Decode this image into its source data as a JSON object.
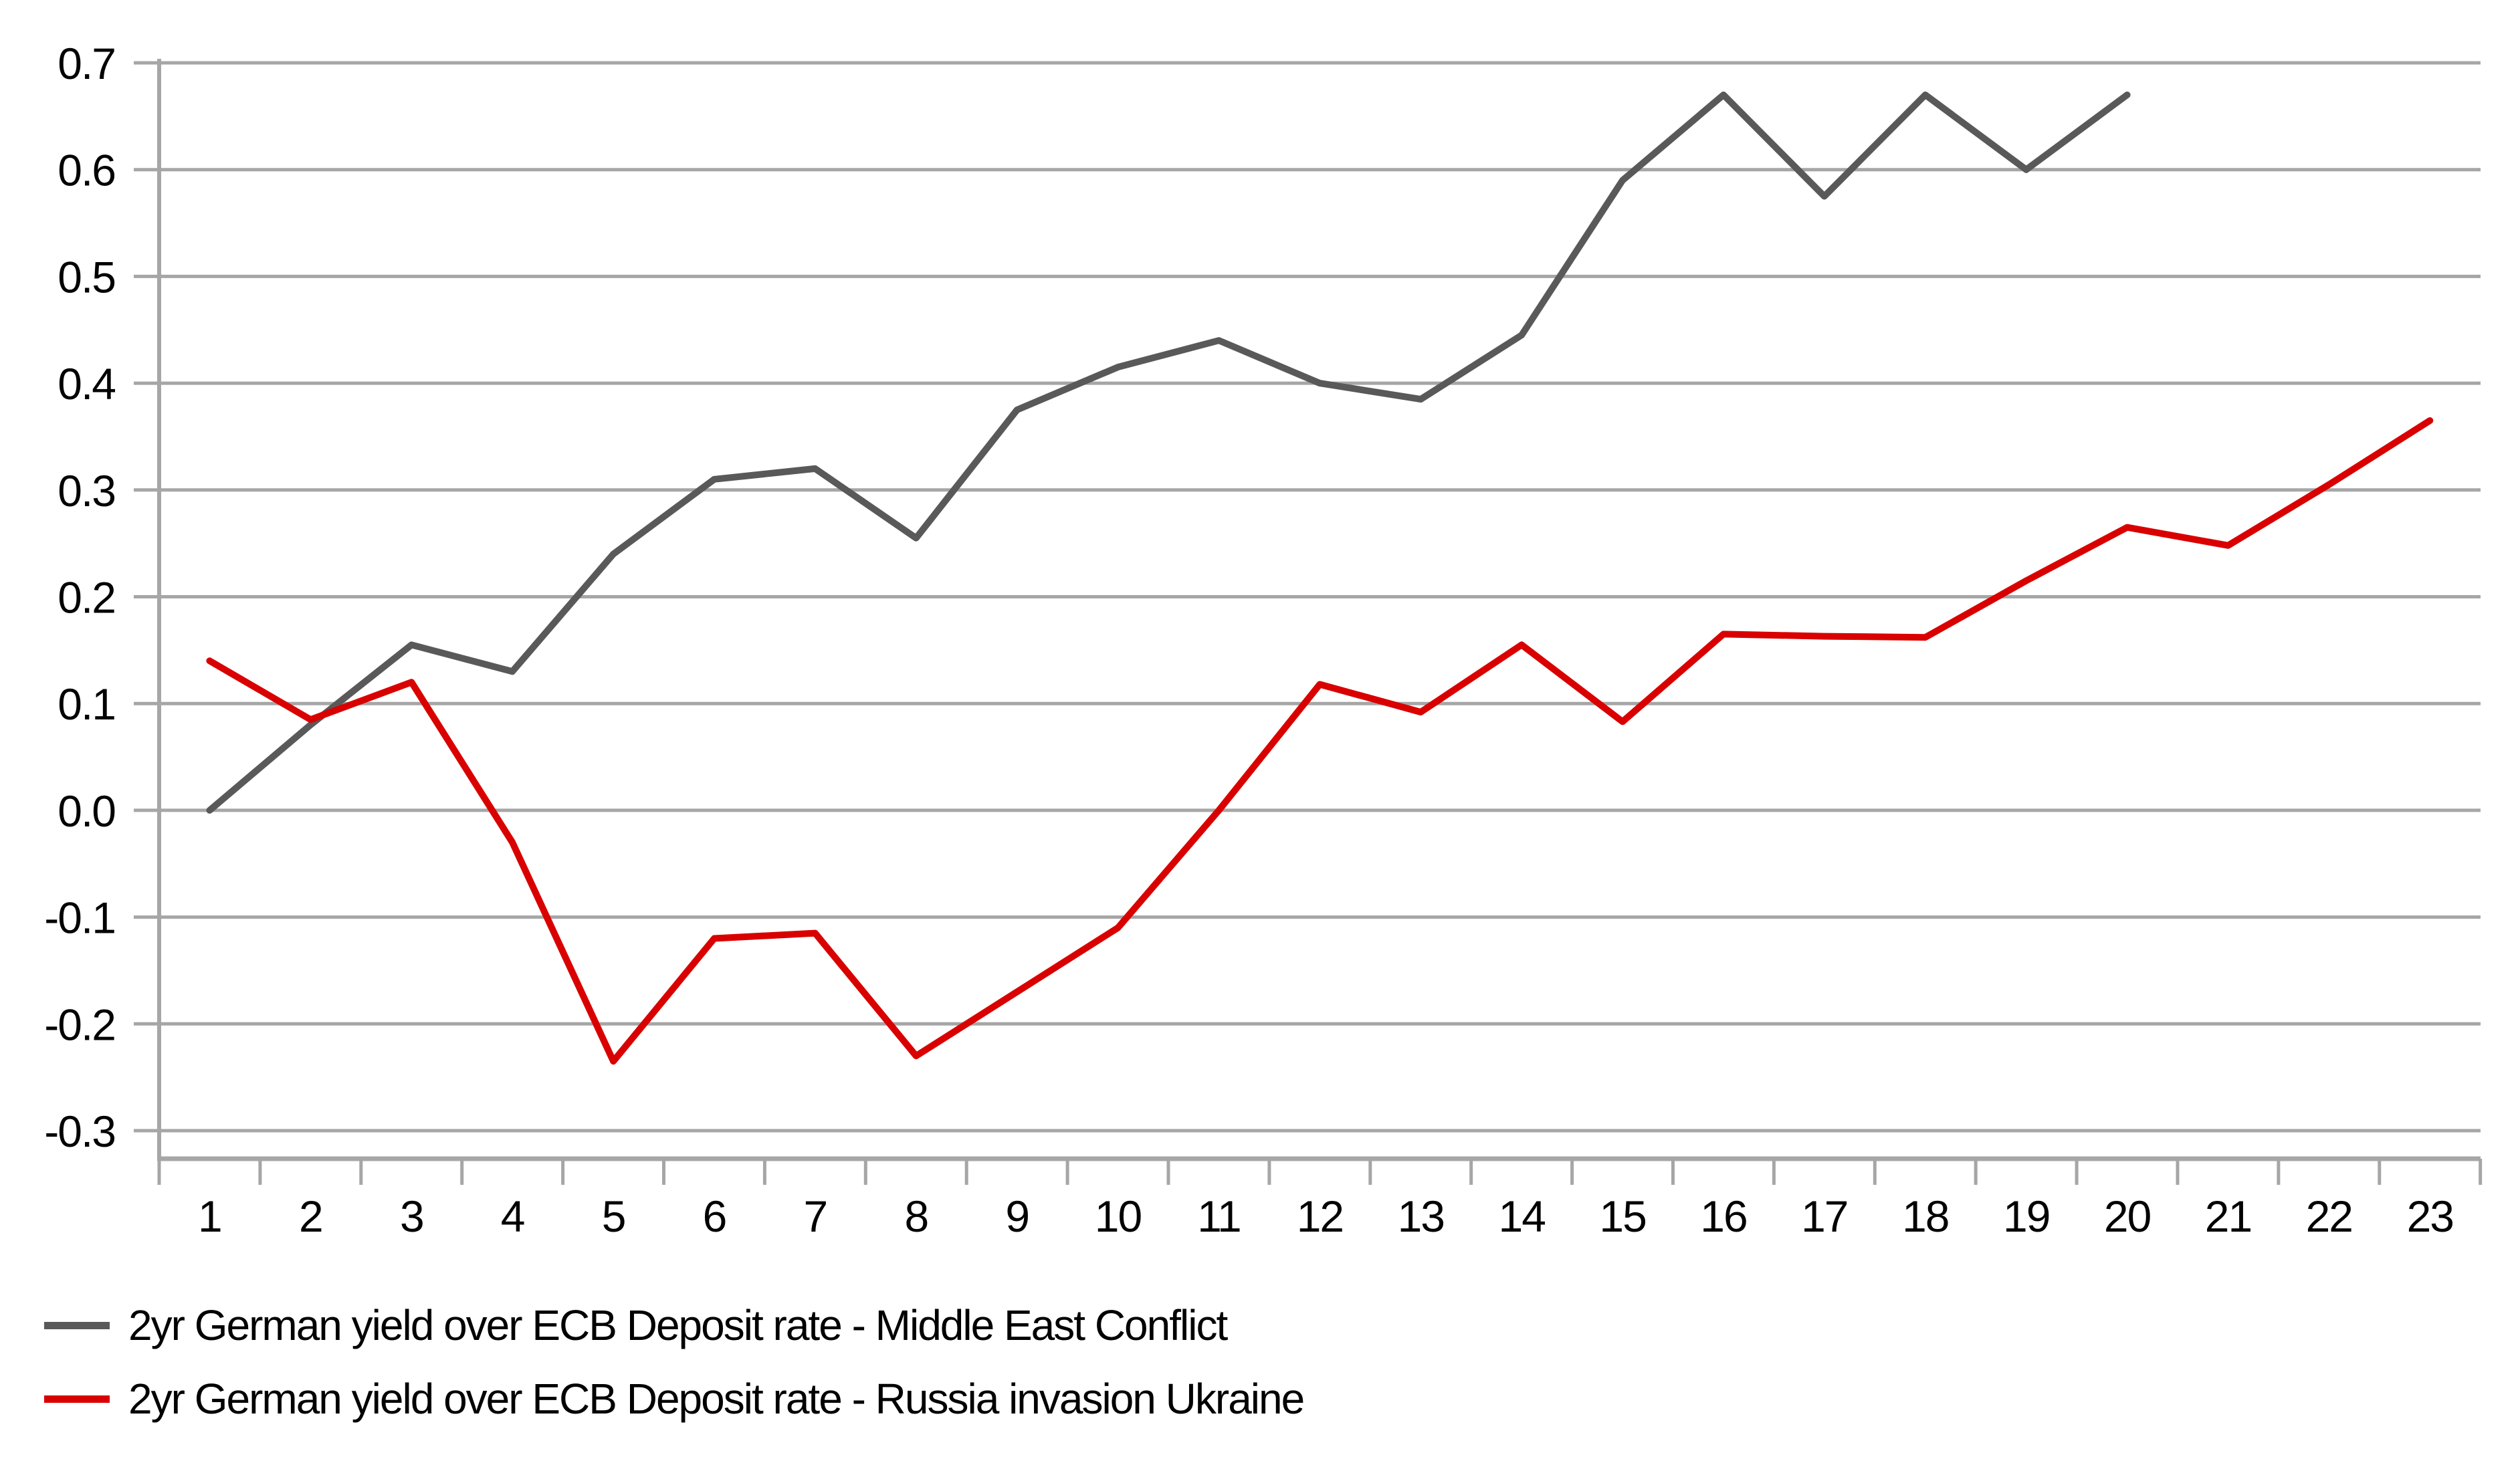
{
  "chart_data": {
    "type": "line",
    "title": "",
    "x_labels": [
      "1",
      "2",
      "3",
      "4",
      "5",
      "6",
      "7",
      "8",
      "9",
      "10",
      "11",
      "12",
      "13",
      "14",
      "15",
      "16",
      "17",
      "18",
      "19",
      "20",
      "21",
      "22",
      "23"
    ],
    "series": [
      {
        "id": "middle-east-conflict",
        "name": "2yr German yield over ECB Deposit rate - Middle East Conflict",
        "color": "#595959",
        "values": [
          0.0,
          0.08,
          0.155,
          0.13,
          0.24,
          0.31,
          0.32,
          0.255,
          0.375,
          0.415,
          0.44,
          0.4,
          0.385,
          0.445,
          0.59,
          0.67,
          0.575,
          0.67,
          0.6,
          0.67
        ]
      },
      {
        "id": "russia-invasion-ukraine",
        "name": "2yr German yield over ECB Deposit rate - Russia invasion Ukraine",
        "color": "#D90000",
        "values": [
          0.14,
          0.085,
          0.12,
          -0.03,
          -0.235,
          -0.12,
          -0.115,
          -0.23,
          -0.17,
          -0.11,
          0.0,
          0.118,
          0.092,
          0.155,
          0.083,
          0.165,
          0.163,
          0.162,
          0.215,
          0.265,
          0.248,
          0.305,
          0.365
        ]
      }
    ],
    "axes": {
      "y_ticks": [
        {
          "value": 0.7,
          "label": "0.7"
        },
        {
          "value": 0.6,
          "label": "0.6"
        },
        {
          "value": 0.5,
          "label": "0.5"
        },
        {
          "value": 0.4,
          "label": "0.4"
        },
        {
          "value": 0.3,
          "label": "0.3"
        },
        {
          "value": 0.2,
          "label": "0.2"
        },
        {
          "value": 0.1,
          "label": "0.1"
        },
        {
          "value": 0.0,
          "label": "0.0"
        },
        {
          "value": -0.1,
          "label": "-0.1"
        },
        {
          "value": -0.2,
          "label": "-0.2"
        },
        {
          "value": -0.3,
          "label": "-0.3"
        }
      ],
      "ylim": [
        -0.3,
        0.7
      ],
      "xlabel": "",
      "ylabel": "",
      "grid": true
    },
    "colors": {
      "gridline": "#A6A6A6",
      "axis": "#A6A6A6",
      "background": "#FFFFFF",
      "text": "#000000"
    },
    "legend_position": "bottom-left"
  }
}
